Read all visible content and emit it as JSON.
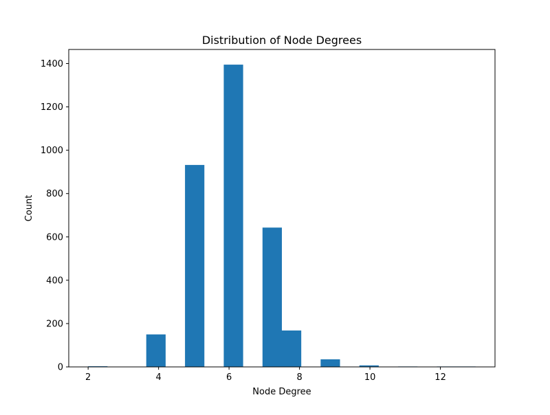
{
  "chart_data": {
    "type": "bar",
    "title": "Distribution of Node Degrees",
    "xlabel": "Node Degree",
    "ylabel": "Count",
    "bins": [
      {
        "start": 2.0,
        "end": 2.55,
        "value": 3
      },
      {
        "start": 2.55,
        "end": 3.1,
        "value": 0
      },
      {
        "start": 3.1,
        "end": 3.65,
        "value": 0
      },
      {
        "start": 3.65,
        "end": 4.2,
        "value": 150
      },
      {
        "start": 4.2,
        "end": 4.75,
        "value": 0
      },
      {
        "start": 4.75,
        "end": 5.3,
        "value": 932
      },
      {
        "start": 5.3,
        "end": 5.85,
        "value": 0
      },
      {
        "start": 5.85,
        "end": 6.4,
        "value": 1395
      },
      {
        "start": 6.4,
        "end": 6.95,
        "value": 0
      },
      {
        "start": 6.95,
        "end": 7.5,
        "value": 643
      },
      {
        "start": 7.5,
        "end": 8.05,
        "value": 168
      },
      {
        "start": 8.05,
        "end": 8.6,
        "value": 0
      },
      {
        "start": 8.6,
        "end": 9.15,
        "value": 35
      },
      {
        "start": 9.15,
        "end": 9.7,
        "value": 0
      },
      {
        "start": 9.7,
        "end": 10.25,
        "value": 7
      },
      {
        "start": 10.25,
        "end": 10.8,
        "value": 0
      },
      {
        "start": 10.8,
        "end": 11.35,
        "value": 2
      },
      {
        "start": 11.35,
        "end": 11.9,
        "value": 0
      },
      {
        "start": 11.9,
        "end": 12.45,
        "value": 2
      },
      {
        "start": 12.45,
        "end": 13.0,
        "value": 2
      }
    ],
    "xlim": [
      1.45,
      13.55
    ],
    "ylim": [
      0,
      1465
    ],
    "xticks": [
      2,
      4,
      6,
      8,
      10,
      12
    ],
    "yticks": [
      0,
      200,
      400,
      600,
      800,
      1000,
      1200,
      1400
    ],
    "grid": false,
    "bar_color": "#1f77b4"
  }
}
